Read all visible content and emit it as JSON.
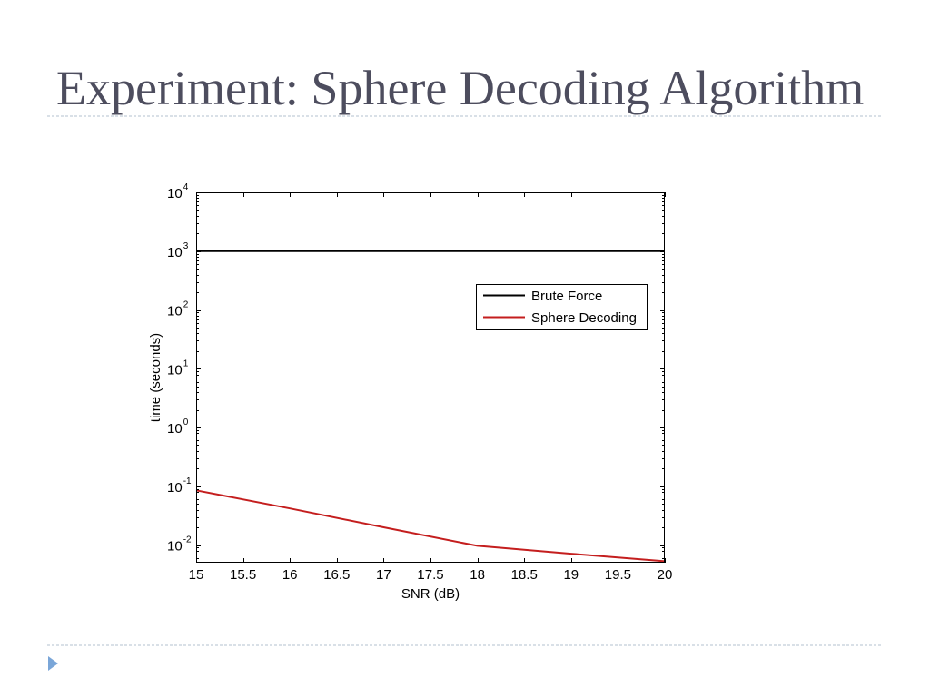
{
  "slide": {
    "title": "Experiment: Sphere Decoding Algorithm",
    "bullet_icon": "triangle-bullet-icon"
  },
  "colors": {
    "title": "#4d4d5e",
    "divider": "#b3c1cf",
    "bullet": "#7aa6d8",
    "axes": "#000000",
    "background": "#ffffff"
  },
  "chart_data": {
    "type": "line",
    "x": [
      15,
      16,
      17,
      18,
      19,
      20
    ],
    "series": [
      {
        "name": "Brute Force",
        "values": [
          1000,
          1000,
          1000,
          1000,
          1000,
          1000
        ],
        "color": "#000000"
      },
      {
        "name": "Sphere Decoding",
        "values": [
          0.085,
          0.042,
          0.02,
          0.0097,
          0.0071,
          0.0053
        ],
        "color": "#c41e1e"
      }
    ],
    "xlabel": "SNR (dB)",
    "ylabel": "time (seconds)",
    "xlim": [
      15,
      20
    ],
    "ylim": [
      0.005,
      10000
    ],
    "yscale": "log",
    "xticks": [
      15,
      15.5,
      16,
      16.5,
      17,
      17.5,
      18,
      18.5,
      19,
      19.5,
      20
    ],
    "xtick_labels": [
      "15",
      "15.5",
      "16",
      "16.5",
      "17",
      "17.5",
      "18",
      "18.5",
      "19",
      "19.5",
      "20"
    ],
    "yticks": [
      0.01,
      0.1,
      1,
      10,
      100,
      1000,
      10000
    ],
    "ytick_labels": [
      {
        "base": "10",
        "exp": "-2"
      },
      {
        "base": "10",
        "exp": "-1"
      },
      {
        "base": "10",
        "exp": "0"
      },
      {
        "base": "10",
        "exp": "1"
      },
      {
        "base": "10",
        "exp": "2"
      },
      {
        "base": "10",
        "exp": "3"
      },
      {
        "base": "10",
        "exp": "4"
      }
    ],
    "grid": false,
    "legend": "upper right"
  }
}
